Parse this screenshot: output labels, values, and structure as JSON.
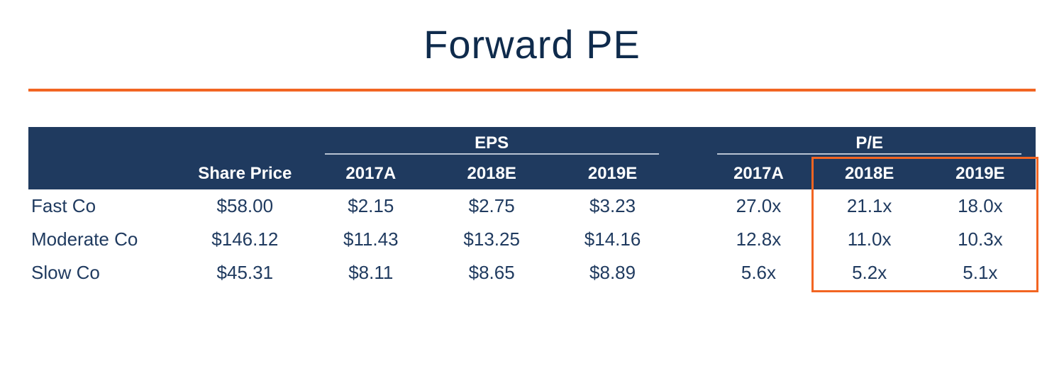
{
  "title": "Forward PE",
  "colors": {
    "header_bg": "#1f3a5f",
    "header_text": "#ffffff",
    "accent": "#f26522",
    "body_text": "#1f3a5f",
    "bg": "#ffffff",
    "group_underline": "#b8c3d3"
  },
  "table": {
    "type": "table",
    "group_headers": {
      "eps": "EPS",
      "pe": "P/E"
    },
    "columns": {
      "share_price": "Share Price",
      "eps_2017a": "2017A",
      "eps_2018e": "2018E",
      "eps_2019e": "2019E",
      "pe_2017a": "2017A",
      "pe_2018e": "2018E",
      "pe_2019e": "2019E"
    },
    "rows": [
      {
        "name": "Fast Co",
        "share_price": "$58.00",
        "eps_2017a": "$2.15",
        "eps_2018e": "$2.75",
        "eps_2019e": "$3.23",
        "pe_2017a": "27.0x",
        "pe_2018e": "21.1x",
        "pe_2019e": "18.0x"
      },
      {
        "name": "Moderate Co",
        "share_price": "$146.12",
        "eps_2017a": "$11.43",
        "eps_2018e": "$13.25",
        "eps_2019e": "$14.16",
        "pe_2017a": "12.8x",
        "pe_2018e": "11.0x",
        "pe_2019e": "10.3x"
      },
      {
        "name": "Slow Co",
        "share_price": "$45.31",
        "eps_2017a": "$8.11",
        "eps_2018e": "$8.65",
        "eps_2019e": "$8.89",
        "pe_2017a": "5.6x",
        "pe_2018e": "5.2x",
        "pe_2019e": "5.1x"
      }
    ],
    "highlight": {
      "cols": [
        "pe_2018e",
        "pe_2019e"
      ],
      "include_header_row": "bottom"
    }
  }
}
